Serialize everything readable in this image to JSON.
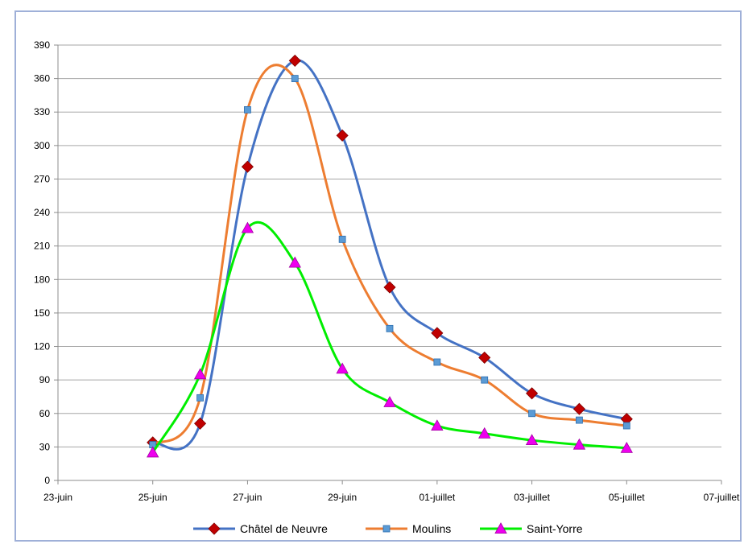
{
  "chart_data": {
    "type": "line",
    "title": "",
    "xlabel": "",
    "ylabel": "",
    "x_ticks": [
      "23-juin",
      "25-juin",
      "27-juin",
      "29-juin",
      "01-juillet",
      "03-juillet",
      "05-juillet",
      "07-juillet"
    ],
    "y_ticks": [
      0,
      30,
      60,
      90,
      120,
      150,
      180,
      210,
      240,
      270,
      300,
      330,
      360,
      390
    ],
    "ylim": [
      0,
      390
    ],
    "x": [
      "25-juin",
      "26-juin",
      "27-juin",
      "28-juin",
      "29-juin",
      "30-juin",
      "01-juillet",
      "02-juillet",
      "03-juillet",
      "04-juillet",
      "05-juillet"
    ],
    "grid": "horizontal",
    "legend_position": "bottom",
    "series": [
      {
        "name": "Châtel de Neuvre",
        "color": "#4472c4",
        "marker": "diamond",
        "marker_color": "#c00000",
        "values": [
          34,
          51,
          281,
          376,
          309,
          173,
          132,
          110,
          78,
          64,
          55
        ]
      },
      {
        "name": "Moulins",
        "color": "#ed7d31",
        "marker": "square",
        "marker_color": "#5b9bd5",
        "values": [
          32,
          74,
          332,
          360,
          216,
          136,
          106,
          90,
          60,
          54,
          49
        ]
      },
      {
        "name": "Saint-Yorre",
        "color": "#00ee00",
        "marker": "triangle",
        "marker_color": "#ee00ee",
        "values": [
          25,
          95,
          226,
          195,
          100,
          70,
          49,
          42,
          36,
          32,
          29
        ]
      }
    ]
  }
}
